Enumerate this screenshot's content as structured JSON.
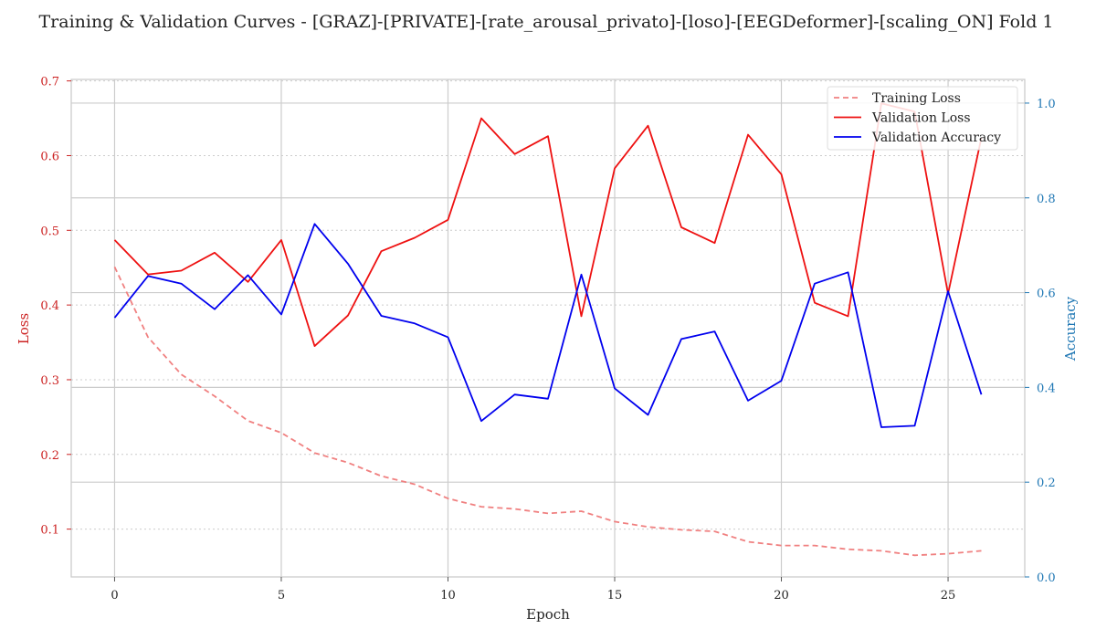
{
  "chart_data": {
    "type": "line",
    "title": "Training & Validation Curves - [GRAZ]-[PRIVATE]-[rate_arousal_privato]-[loso]-[EEGDeformer]-[scaling_ON] Fold 1",
    "xlabel": "Epoch",
    "ylabel_left": "Loss",
    "ylabel_right": "Accuracy",
    "xlim": [
      -1.3,
      27.3
    ],
    "ylim_left": [
      0.036,
      0.702
    ],
    "ylim_right": [
      0.0,
      1.05
    ],
    "xticks": [
      0,
      5,
      10,
      15,
      20,
      25
    ],
    "yticks_left": [
      0.1,
      0.2,
      0.3,
      0.4,
      0.5,
      0.6,
      0.7
    ],
    "yticks_right": [
      0.0,
      0.2,
      0.4,
      0.6,
      0.8,
      1.0
    ],
    "grid": true,
    "legend_position": "top-right",
    "x": [
      0,
      1,
      2,
      3,
      4,
      5,
      6,
      7,
      8,
      9,
      10,
      11,
      12,
      13,
      14,
      15,
      16,
      17,
      18,
      19,
      20,
      21,
      22,
      23,
      24,
      25,
      26
    ],
    "series": [
      {
        "name": "Training Loss",
        "axis": "left",
        "style": "dashed",
        "color": "#f08080",
        "values": [
          0.451,
          0.357,
          0.307,
          0.278,
          0.245,
          0.229,
          0.202,
          0.189,
          0.171,
          0.16,
          0.141,
          0.13,
          0.127,
          0.121,
          0.124,
          0.11,
          0.103,
          0.099,
          0.097,
          0.083,
          0.078,
          0.078,
          0.073,
          0.071,
          0.065,
          0.067,
          0.071
        ]
      },
      {
        "name": "Validation Loss",
        "axis": "left",
        "style": "solid",
        "color": "#ee1111",
        "values": [
          0.487,
          0.441,
          0.446,
          0.47,
          0.431,
          0.487,
          0.345,
          0.386,
          0.472,
          0.49,
          0.514,
          0.65,
          0.602,
          0.626,
          0.385,
          0.583,
          0.64,
          0.504,
          0.483,
          0.628,
          0.575,
          0.403,
          0.385,
          0.67,
          0.659,
          0.415,
          0.624
        ]
      },
      {
        "name": "Validation Accuracy",
        "axis": "right",
        "style": "solid",
        "color": "#0000ee",
        "values": [
          0.547,
          0.635,
          0.619,
          0.565,
          0.637,
          0.554,
          0.745,
          0.661,
          0.551,
          0.535,
          0.506,
          0.329,
          0.385,
          0.376,
          0.638,
          0.398,
          0.342,
          0.502,
          0.518,
          0.372,
          0.414,
          0.619,
          0.643,
          0.316,
          0.319,
          0.603,
          0.385
        ]
      }
    ]
  }
}
